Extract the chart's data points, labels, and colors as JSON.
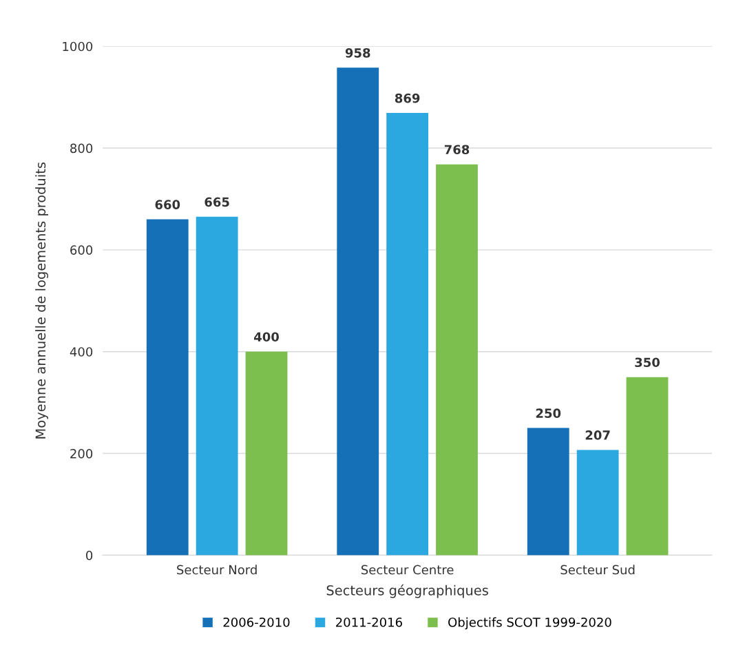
{
  "chart_data": {
    "type": "bar",
    "xlabel": "Secteurs géographiques",
    "ylabel": "Moyenne annuelle de logements produits",
    "categories": [
      "Secteur Nord",
      "Secteur Centre",
      "Secteur Sud"
    ],
    "series": [
      {
        "name": "2006-2010",
        "color": "#1570b8",
        "values": [
          660,
          958,
          250
        ]
      },
      {
        "name": "2011-2016",
        "color": "#2ba8e0",
        "values": [
          665,
          869,
          207
        ]
      },
      {
        "name": "Objectifs SCOT 1999-2020",
        "color": "#7dbf4e",
        "values": [
          400,
          768,
          350
        ]
      }
    ],
    "ylim": [
      0,
      1000
    ],
    "yticks": [
      0,
      200,
      400,
      600,
      800,
      1000
    ],
    "grid": "y",
    "legend": "bottom",
    "data_labels": true
  }
}
